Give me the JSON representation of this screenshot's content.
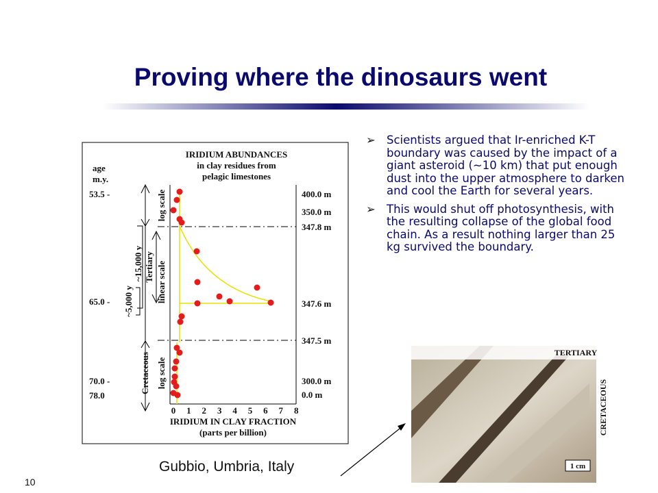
{
  "header": {
    "title": "Proving where the dinosaurs went"
  },
  "bullets": [
    "Scientists argued that  Ir-enriched K-T boundary was caused by the impact of a giant asteroid (~10 km) that put enough dust into the upper atmosphere to darken and cool the Earth for several years.",
    "This would shut off photosynthesis, with the resulting collapse of the global food chain. As a result nothing larger than 25 kg survived the boundary."
  ],
  "figure": {
    "title_lines": [
      "IRIDIUM ABUNDANCES",
      "in clay residues from",
      "pelagic limestones"
    ],
    "age_header": [
      "age",
      "m.y."
    ],
    "ages": [
      "53.5 -",
      "65.0 -",
      "70.0 -",
      "78.0"
    ],
    "depths": [
      "400.0 m",
      "350.0 m",
      "347.8 m",
      "347.6 m",
      "347.5 m",
      "300.0 m",
      "0.0 m"
    ],
    "scales": [
      "log scale",
      "linear scale",
      "log scale"
    ],
    "periods": [
      "Tertiary",
      "Cretaceous"
    ],
    "durations": [
      "~15,000 y",
      "~5,000 y"
    ],
    "x_ticks": [
      "0",
      "1",
      "2",
      "3",
      "4",
      "5",
      "6",
      "7",
      "8"
    ],
    "x_title": [
      "IRIDIUM IN CLAY FRACTION",
      "(parts per billion)"
    ]
  },
  "photo": {
    "labels": [
      "TERTIARY",
      "CRETACEOUS",
      "1 cm"
    ]
  },
  "caption": "Gubbio, Umbria, Italy",
  "slide_number": "10"
}
